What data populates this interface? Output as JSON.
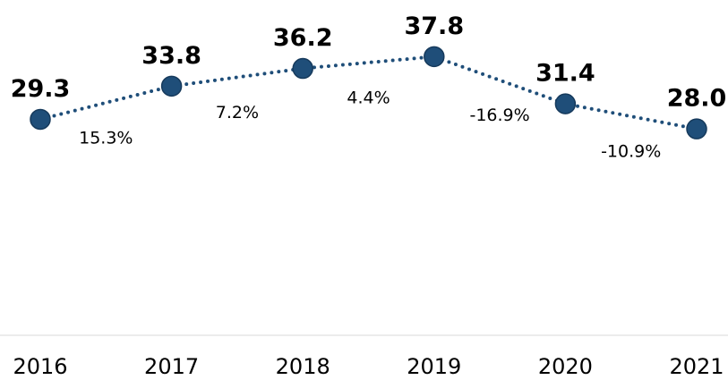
{
  "chart_data": {
    "type": "line",
    "categories": [
      "2016",
      "2017",
      "2018",
      "2019",
      "2020",
      "2021"
    ],
    "series": [
      {
        "color": "#1f4e79",
        "values": [
          29.3,
          33.8,
          36.2,
          37.8,
          31.4,
          28.0
        ],
        "value_labels": [
          "29.3",
          "33.8",
          "36.2",
          "37.8",
          "31.4",
          "28.0"
        ]
      }
    ],
    "annotations": [
      "15.3%",
      "7.2%",
      "4.4%",
      "-16.9%",
      "-10.9%"
    ],
    "ylim": [
      0,
      45
    ]
  }
}
